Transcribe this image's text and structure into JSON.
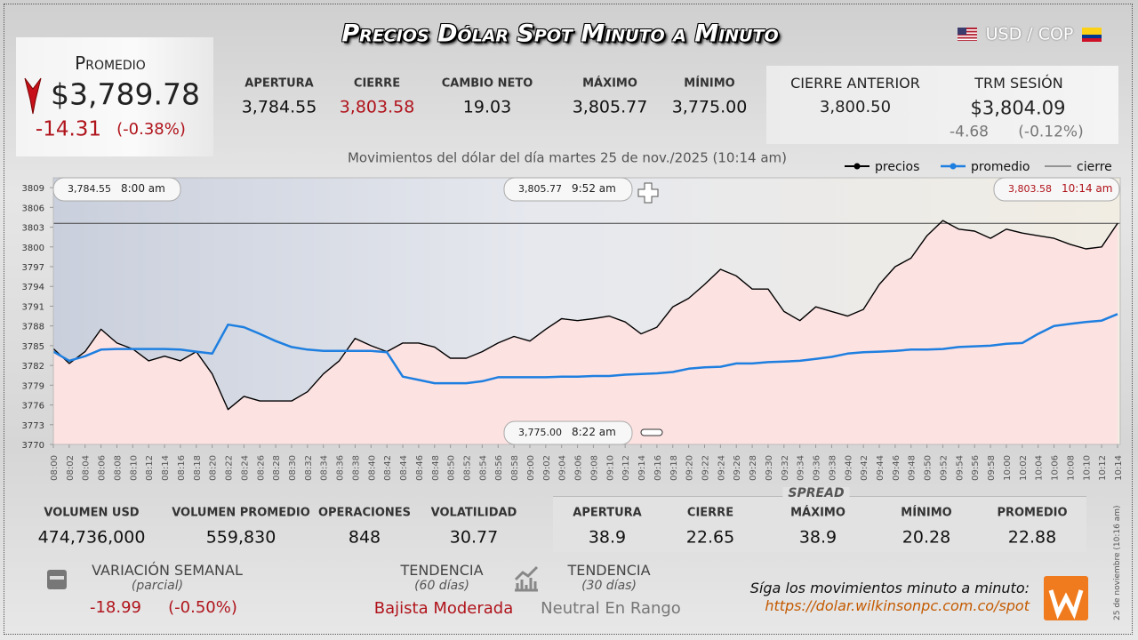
{
  "header": {
    "title": "Precios Dólar Spot Minuto a Minuto",
    "pair": "USD / COP"
  },
  "average": {
    "label": "Promedio",
    "value": "$3,789.78",
    "change": "-14.31",
    "change_pct": "(-0.38%)"
  },
  "session": [
    {
      "label": "APERTURA",
      "value": "3,784.55"
    },
    {
      "label": "CIERRE",
      "value": "3,803.58"
    },
    {
      "label": "CAMBIO NETO",
      "value": "19.03"
    },
    {
      "label": "MÁXIMO",
      "value": "3,805.77"
    },
    {
      "label": "MÍNIMO",
      "value": "3,775.00"
    }
  ],
  "previous_close": {
    "label": "CIERRE ANTERIOR",
    "value": "3,800.50"
  },
  "trm": {
    "label": "TRM SESIÓN",
    "value": "$3,804.09",
    "change": "-4.68",
    "change_pct": "(-0.12%)"
  },
  "chart_data": {
    "type": "line",
    "subtitle": "Movimientos del dólar del día martes 25 de nov./2025 (10:14 am)",
    "categories": [
      "08:00",
      "08:02",
      "08:04",
      "08:06",
      "08:08",
      "08:10",
      "08:12",
      "08:14",
      "08:16",
      "08:18",
      "08:20",
      "08:22",
      "08:24",
      "08:26",
      "08:28",
      "08:30",
      "08:32",
      "08:34",
      "08:36",
      "08:38",
      "08:40",
      "08:42",
      "08:44",
      "08:46",
      "08:48",
      "08:50",
      "08:52",
      "08:54",
      "08:56",
      "08:58",
      "09:00",
      "09:02",
      "09:04",
      "09:06",
      "09:08",
      "09:10",
      "09:12",
      "09:14",
      "09:16",
      "09:18",
      "09:20",
      "09:22",
      "09:24",
      "09:26",
      "09:28",
      "09:30",
      "09:32",
      "09:34",
      "09:36",
      "09:38",
      "09:40",
      "09:42",
      "09:44",
      "09:46",
      "09:48",
      "09:50",
      "09:52",
      "09:54",
      "09:56",
      "09:58",
      "10:00",
      "10:02",
      "10:04",
      "10:06",
      "10:08",
      "10:10",
      "10:12",
      "10:14"
    ],
    "series": [
      {
        "name": "precios",
        "color": "#000000",
        "values": [
          3784.55,
          3782.3,
          3784.1,
          3787.5,
          3785.4,
          3784.5,
          3782.7,
          3783.4,
          3782.7,
          3784.1,
          3780.7,
          3775.3,
          3777.3,
          3776.6,
          3776.6,
          3776.6,
          3778.0,
          3780.7,
          3782.7,
          3786.1,
          3785.0,
          3784.1,
          3785.4,
          3785.4,
          3784.8,
          3783.1,
          3783.1,
          3784.1,
          3785.4,
          3786.4,
          3785.7,
          3787.5,
          3789.1,
          3788.8,
          3789.1,
          3789.5,
          3788.6,
          3786.8,
          3787.8,
          3790.9,
          3792.2,
          3794.3,
          3796.6,
          3795.6,
          3793.6,
          3793.6,
          3790.2,
          3788.8,
          3790.9,
          3790.2,
          3789.5,
          3790.5,
          3794.3,
          3797.0,
          3798.3,
          3801.7,
          3804.0,
          3802.7,
          3802.4,
          3801.3,
          3802.7,
          3802.1,
          3801.7,
          3801.3,
          3800.4,
          3799.7,
          3800.0,
          3803.58
        ]
      },
      {
        "name": "promedio",
        "color": "#1e7fe0",
        "values": [
          3784.1,
          3782.7,
          3783.4,
          3784.4,
          3784.5,
          3784.5,
          3784.5,
          3784.5,
          3784.4,
          3784.1,
          3783.8,
          3788.2,
          3787.8,
          3786.8,
          3785.7,
          3784.8,
          3784.4,
          3784.2,
          3784.2,
          3784.2,
          3784.2,
          3784.0,
          3780.3,
          3779.8,
          3779.3,
          3779.3,
          3779.3,
          3779.6,
          3780.2,
          3780.2,
          3780.2,
          3780.2,
          3780.3,
          3780.3,
          3780.4,
          3780.4,
          3780.6,
          3780.7,
          3780.8,
          3781.0,
          3781.5,
          3781.7,
          3781.8,
          3782.3,
          3782.3,
          3782.5,
          3782.6,
          3782.7,
          3783.0,
          3783.3,
          3783.8,
          3784.0,
          3784.1,
          3784.2,
          3784.4,
          3784.4,
          3784.5,
          3784.8,
          3784.9,
          3785.0,
          3785.3,
          3785.4,
          3786.8,
          3788.0,
          3788.3,
          3788.6,
          3788.8,
          3789.8
        ]
      }
    ],
    "close_line": {
      "name": "cierre",
      "value": 3803.58,
      "color": "#444444"
    },
    "ylim": [
      3770,
      3810.5
    ],
    "yticks": [
      3770,
      3773,
      3776,
      3779,
      3782,
      3785,
      3788,
      3791,
      3794,
      3797,
      3800,
      3803,
      3806,
      3809
    ],
    "fill": "#fde2e2",
    "annotations": [
      {
        "value": 3784.55,
        "label": "3,784.55",
        "time": "8:00 am"
      },
      {
        "value": 3805.77,
        "label": "3,805.77",
        "time": "9:52 am"
      },
      {
        "value": 3803.58,
        "label": "3,803.58",
        "time": "10:14 am"
      },
      {
        "value": 3775.0,
        "label": "3,775.00",
        "time": "8:22 am"
      }
    ]
  },
  "volume": [
    {
      "label": "VOLUMEN USD",
      "value": "474,736,000"
    },
    {
      "label": "VOLUMEN PROMEDIO",
      "value": "559,830"
    },
    {
      "label": "OPERACIONES",
      "value": "848"
    },
    {
      "label": "VOLATILIDAD",
      "value": "30.77"
    }
  ],
  "spread": {
    "title": "SPREAD",
    "items": [
      {
        "label": "APERTURA",
        "value": "38.9"
      },
      {
        "label": "CIERRE",
        "value": "22.65"
      },
      {
        "label": "MÁXIMO",
        "value": "38.9"
      },
      {
        "label": "MÍNIMO",
        "value": "20.28"
      },
      {
        "label": "PROMEDIO",
        "value": "22.88"
      }
    ]
  },
  "weekly": {
    "label": "VARIACIÓN SEMANAL",
    "note": "(parcial)",
    "change": "-18.99",
    "change_pct": "(-0.50%)"
  },
  "trends": [
    {
      "label": "TENDENCIA",
      "period": "(60 días)",
      "value": "Bajista Moderada"
    },
    {
      "label": "TENDENCIA",
      "period": "(30 días)",
      "value": "Neutral En Rango"
    }
  ],
  "footer": {
    "text": "Síga los movimientos minuto a minuto:",
    "link": "https://dolar.wilkinsonpc.com.co/spot",
    "date": "25 de noviembre (10:16 am)"
  }
}
